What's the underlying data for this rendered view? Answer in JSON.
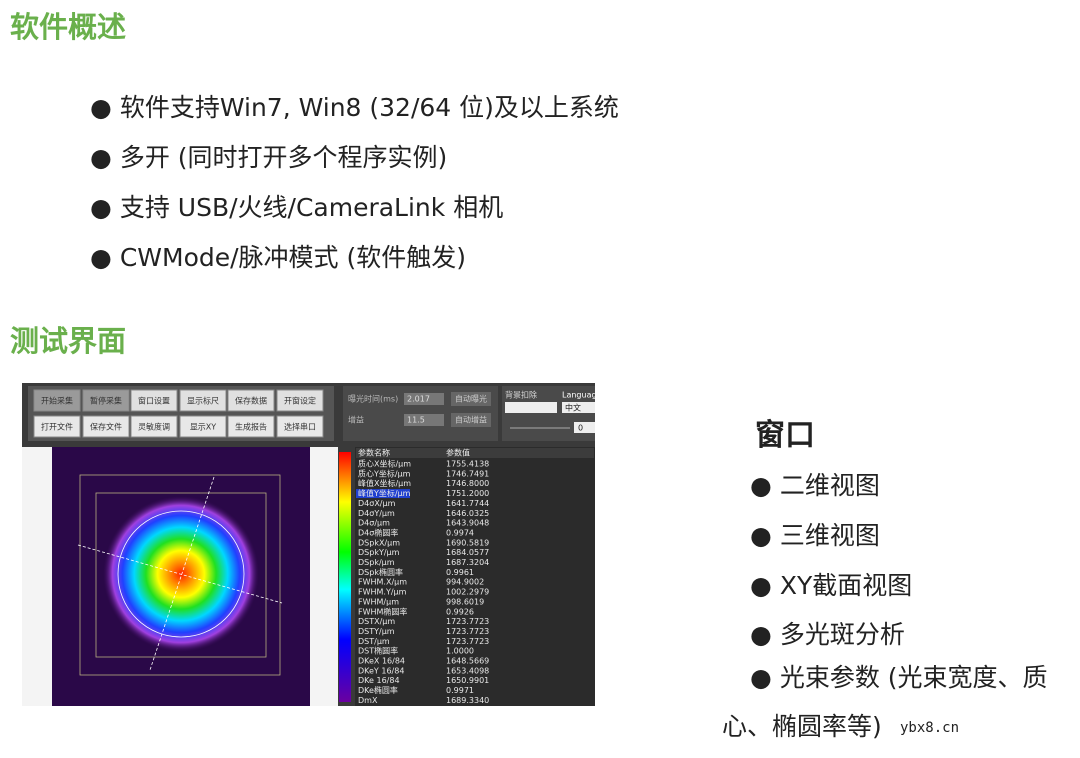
{
  "overview": {
    "title": "软件概述",
    "items": [
      "软件支持Win7, Win8 (32/64 位)及以上系统",
      "多开 (同时打开多个程序实例)",
      "支持 USB/火线/CameraLink 相机",
      "CWMode/脉冲模式 (软件触发)"
    ]
  },
  "test": {
    "title": "测试界面"
  },
  "app": {
    "buttons_row1": [
      "开始采集",
      "暂停采集",
      "窗口设置",
      "显示标尺",
      "保存数据",
      "开窗设定"
    ],
    "buttons_row2": [
      "打开文件",
      "保存文件",
      "灵敏度调",
      "显示XY",
      "生成报告",
      "选择串口"
    ],
    "exposure_label": "曝光时间(ms)",
    "exposure_value": "2.017",
    "gain_label": "增益",
    "gain_value": "11.5",
    "auto_exposure": "自动曝光",
    "auto_gain": "自动增益",
    "background_label": "背景扣除",
    "language_label": "Language",
    "language_value": "中文",
    "slider_value": "0",
    "table": {
      "headers": [
        "参数名称",
        "参数值"
      ],
      "rows": [
        [
          "质心X坐标/μm",
          "1755.4138"
        ],
        [
          "质心Y坐标/μm",
          "1746.7491"
        ],
        [
          "峰值X坐标/μm",
          "1746.8000"
        ],
        [
          "峰值Y坐标/μm",
          "1751.2000"
        ],
        [
          "D4σX/μm",
          "1641.7744"
        ],
        [
          "D4σY/μm",
          "1646.0325"
        ],
        [
          "D4σ/μm",
          "1643.9048"
        ],
        [
          "D4σ椭圆率",
          "0.9974"
        ],
        [
          "DSpkX/μm",
          "1690.5819"
        ],
        [
          "DSpkY/μm",
          "1684.0577"
        ],
        [
          "DSpk/μm",
          "1687.3204"
        ],
        [
          "DSpk椭圆率",
          "0.9961"
        ],
        [
          "FWHM.X/μm",
          "994.9002"
        ],
        [
          "FWHM.Y/μm",
          "1002.2979"
        ],
        [
          "FWHM/μm",
          "998.6019"
        ],
        [
          "FWHM椭圆率",
          "0.9926"
        ],
        [
          "DSTX/μm",
          "1723.7723"
        ],
        [
          "DSTY/μm",
          "1723.7723"
        ],
        [
          "DST/μm",
          "1723.7723"
        ],
        [
          "DST椭圆率",
          "1.0000"
        ],
        [
          "DKeX 16/84",
          "1648.5669"
        ],
        [
          "DKeY 16/84",
          "1653.4098"
        ],
        [
          "DKe 16/84",
          "1650.9901"
        ],
        [
          "DKe椭圆率",
          "0.9971"
        ],
        [
          "DmX",
          "1689.3340"
        ]
      ]
    }
  },
  "window": {
    "title": "窗口",
    "items": [
      "二维视图",
      "三维视图",
      "XY截面视图",
      "多光斑分析",
      "光束参数 (光束宽度、质心、椭圆率等)"
    ]
  },
  "watermark": "ybx8.cn"
}
